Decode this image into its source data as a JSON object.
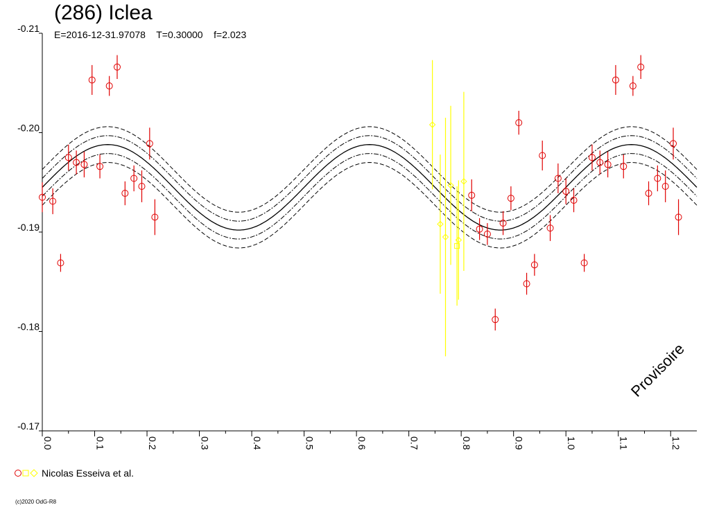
{
  "header": {
    "title": "(286) Iclea",
    "subtitle": "E=2016-12-31.97078    T=0.30000    f=2.023"
  },
  "watermark": "Provisoire",
  "legend": {
    "label": "Nicolas Esseiva et al."
  },
  "copyright": "(c)2020 OdG-R8",
  "colors": {
    "series_a": "#e00000",
    "series_b": "#ffff00",
    "model": "#000000"
  },
  "chart_data": {
    "type": "scatter",
    "xlim": [
      0.0,
      1.25
    ],
    "ylim": [
      -0.21,
      -0.17
    ],
    "y_axis_inverted": true,
    "xticks": [
      "0.0",
      "0.1",
      "0.2",
      "0.3",
      "0.4",
      "0.5",
      "0.6",
      "0.7",
      "0.8",
      "0.9",
      "1.0",
      "1.1",
      "1.2"
    ],
    "yticks": [
      "-0.21",
      "-0.20",
      "-0.19",
      "-0.18",
      "-0.17"
    ],
    "model_curve": {
      "mean": -0.1945,
      "amplitude": 0.0043,
      "peak_phase": 0.125,
      "cycles_per_phase": 2,
      "envelope_offsets": [
        -0.0018,
        -0.0009,
        0.0009,
        0.0018
      ]
    },
    "series": [
      {
        "name": "Nicolas Esseiva et al.",
        "color": "#e00000",
        "marker": "circle",
        "points": [
          {
            "x": 0.0,
            "y": -0.1935,
            "err": 0.0015
          },
          {
            "x": 0.02,
            "y": -0.1931,
            "err": 0.0013
          },
          {
            "x": 0.035,
            "y": -0.1869,
            "err": 0.0009
          },
          {
            "x": 0.05,
            "y": -0.1975,
            "err": 0.0013
          },
          {
            "x": 0.065,
            "y": -0.197,
            "err": 0.0012
          },
          {
            "x": 0.08,
            "y": -0.1968,
            "err": 0.0013
          },
          {
            "x": 0.095,
            "y": -0.2053,
            "err": 0.0015
          },
          {
            "x": 0.11,
            "y": -0.1966,
            "err": 0.0012
          },
          {
            "x": 0.128,
            "y": -0.2047,
            "err": 0.001
          },
          {
            "x": 0.143,
            "y": -0.2066,
            "err": 0.0012
          },
          {
            "x": 0.158,
            "y": -0.1939,
            "err": 0.0012
          },
          {
            "x": 0.175,
            "y": -0.1954,
            "err": 0.0013
          },
          {
            "x": 0.19,
            "y": -0.1946,
            "err": 0.0016
          },
          {
            "x": 0.205,
            "y": -0.1989,
            "err": 0.0016
          },
          {
            "x": 0.215,
            "y": -0.1915,
            "err": 0.0018
          },
          {
            "x": 0.82,
            "y": -0.1937,
            "err": 0.0016
          },
          {
            "x": 0.835,
            "y": -0.1903,
            "err": 0.0011
          },
          {
            "x": 0.85,
            "y": -0.1898,
            "err": 0.0011
          },
          {
            "x": 0.865,
            "y": -0.1812,
            "err": 0.0011
          },
          {
            "x": 0.88,
            "y": -0.1909,
            "err": 0.0012
          },
          {
            "x": 0.895,
            "y": -0.1934,
            "err": 0.0012
          },
          {
            "x": 0.91,
            "y": -0.201,
            "err": 0.0012
          },
          {
            "x": 0.925,
            "y": -0.1848,
            "err": 0.0011
          },
          {
            "x": 0.94,
            "y": -0.1867,
            "err": 0.0011
          },
          {
            "x": 0.955,
            "y": -0.1977,
            "err": 0.0015
          },
          {
            "x": 0.97,
            "y": -0.1904,
            "err": 0.0013
          },
          {
            "x": 0.985,
            "y": -0.1954,
            "err": 0.0015
          },
          {
            "x": 1.0,
            "y": -0.1941,
            "err": 0.0013
          },
          {
            "x": 1.015,
            "y": -0.1932,
            "err": 0.0012
          },
          {
            "x": 1.035,
            "y": -0.1869,
            "err": 0.0009
          },
          {
            "x": 1.05,
            "y": -0.1975,
            "err": 0.0013
          },
          {
            "x": 1.065,
            "y": -0.197,
            "err": 0.0012
          },
          {
            "x": 1.08,
            "y": -0.1968,
            "err": 0.0013
          },
          {
            "x": 1.095,
            "y": -0.2053,
            "err": 0.0015
          },
          {
            "x": 1.11,
            "y": -0.1966,
            "err": 0.0012
          },
          {
            "x": 1.128,
            "y": -0.2047,
            "err": 0.001
          },
          {
            "x": 1.143,
            "y": -0.2066,
            "err": 0.0012
          },
          {
            "x": 1.158,
            "y": -0.1939,
            "err": 0.0012
          },
          {
            "x": 1.175,
            "y": -0.1954,
            "err": 0.0013
          },
          {
            "x": 1.19,
            "y": -0.1946,
            "err": 0.0016
          },
          {
            "x": 1.205,
            "y": -0.1989,
            "err": 0.0016
          },
          {
            "x": 1.215,
            "y": -0.1915,
            "err": 0.0018
          }
        ]
      },
      {
        "name": "Nicolas Esseiva et al.",
        "color": "#ffff00",
        "marker": "diamond",
        "points": [
          {
            "x": 0.745,
            "y": -0.2008,
            "err": 0.0065
          },
          {
            "x": 0.76,
            "y": -0.1908,
            "err": 0.007
          },
          {
            "x": 0.77,
            "y": -0.1895,
            "err": 0.012
          },
          {
            "x": 0.78,
            "y": -0.1947,
            "err": 0.008
          },
          {
            "x": 0.795,
            "y": -0.1892,
            "err": 0.006
          },
          {
            "x": 0.805,
            "y": -0.1951,
            "err": 0.009
          }
        ]
      },
      {
        "name": "Nicolas Esseiva et al.",
        "color": "#ffff00",
        "marker": "square",
        "points": [
          {
            "x": 0.792,
            "y": -0.1886,
            "err": 0.006
          }
        ]
      }
    ]
  }
}
